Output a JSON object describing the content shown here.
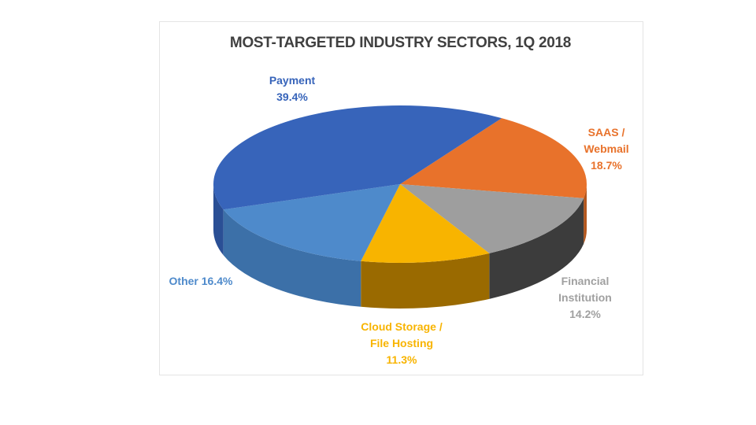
{
  "chart_data": {
    "type": "pie",
    "title": "MOST-TARGETED INDUSTRY SECTORS, 1Q 2018",
    "slices": [
      {
        "name": "SAAS / Webmail",
        "label_lines": [
          "SAAS /",
          "Webmail",
          "18.7%"
        ],
        "value": 18.7,
        "color": "#E8722B",
        "side": "#B4561C"
      },
      {
        "name": "Financial Institution",
        "label_lines": [
          "Financial",
          "Institution",
          "14.2%"
        ],
        "value": 14.2,
        "color": "#9E9E9E",
        "side": "#3C3C3C",
        "label_color": "#A0A0A0"
      },
      {
        "name": "Cloud Storage / File Hosting",
        "label_lines": [
          "Cloud Storage /",
          "File Hosting",
          "11.3%"
        ],
        "value": 11.3,
        "color": "#F8B400",
        "side": "#9A6A00"
      },
      {
        "name": "Other",
        "label_lines": [
          "Other 16.4%"
        ],
        "value": 16.4,
        "color": "#4E8ACB",
        "side": "#3C70A8"
      },
      {
        "name": "Payment",
        "label_lines": [
          "Payment",
          "39.4%"
        ],
        "value": 39.4,
        "color": "#3764BA",
        "side": "#2A4F95"
      }
    ]
  }
}
